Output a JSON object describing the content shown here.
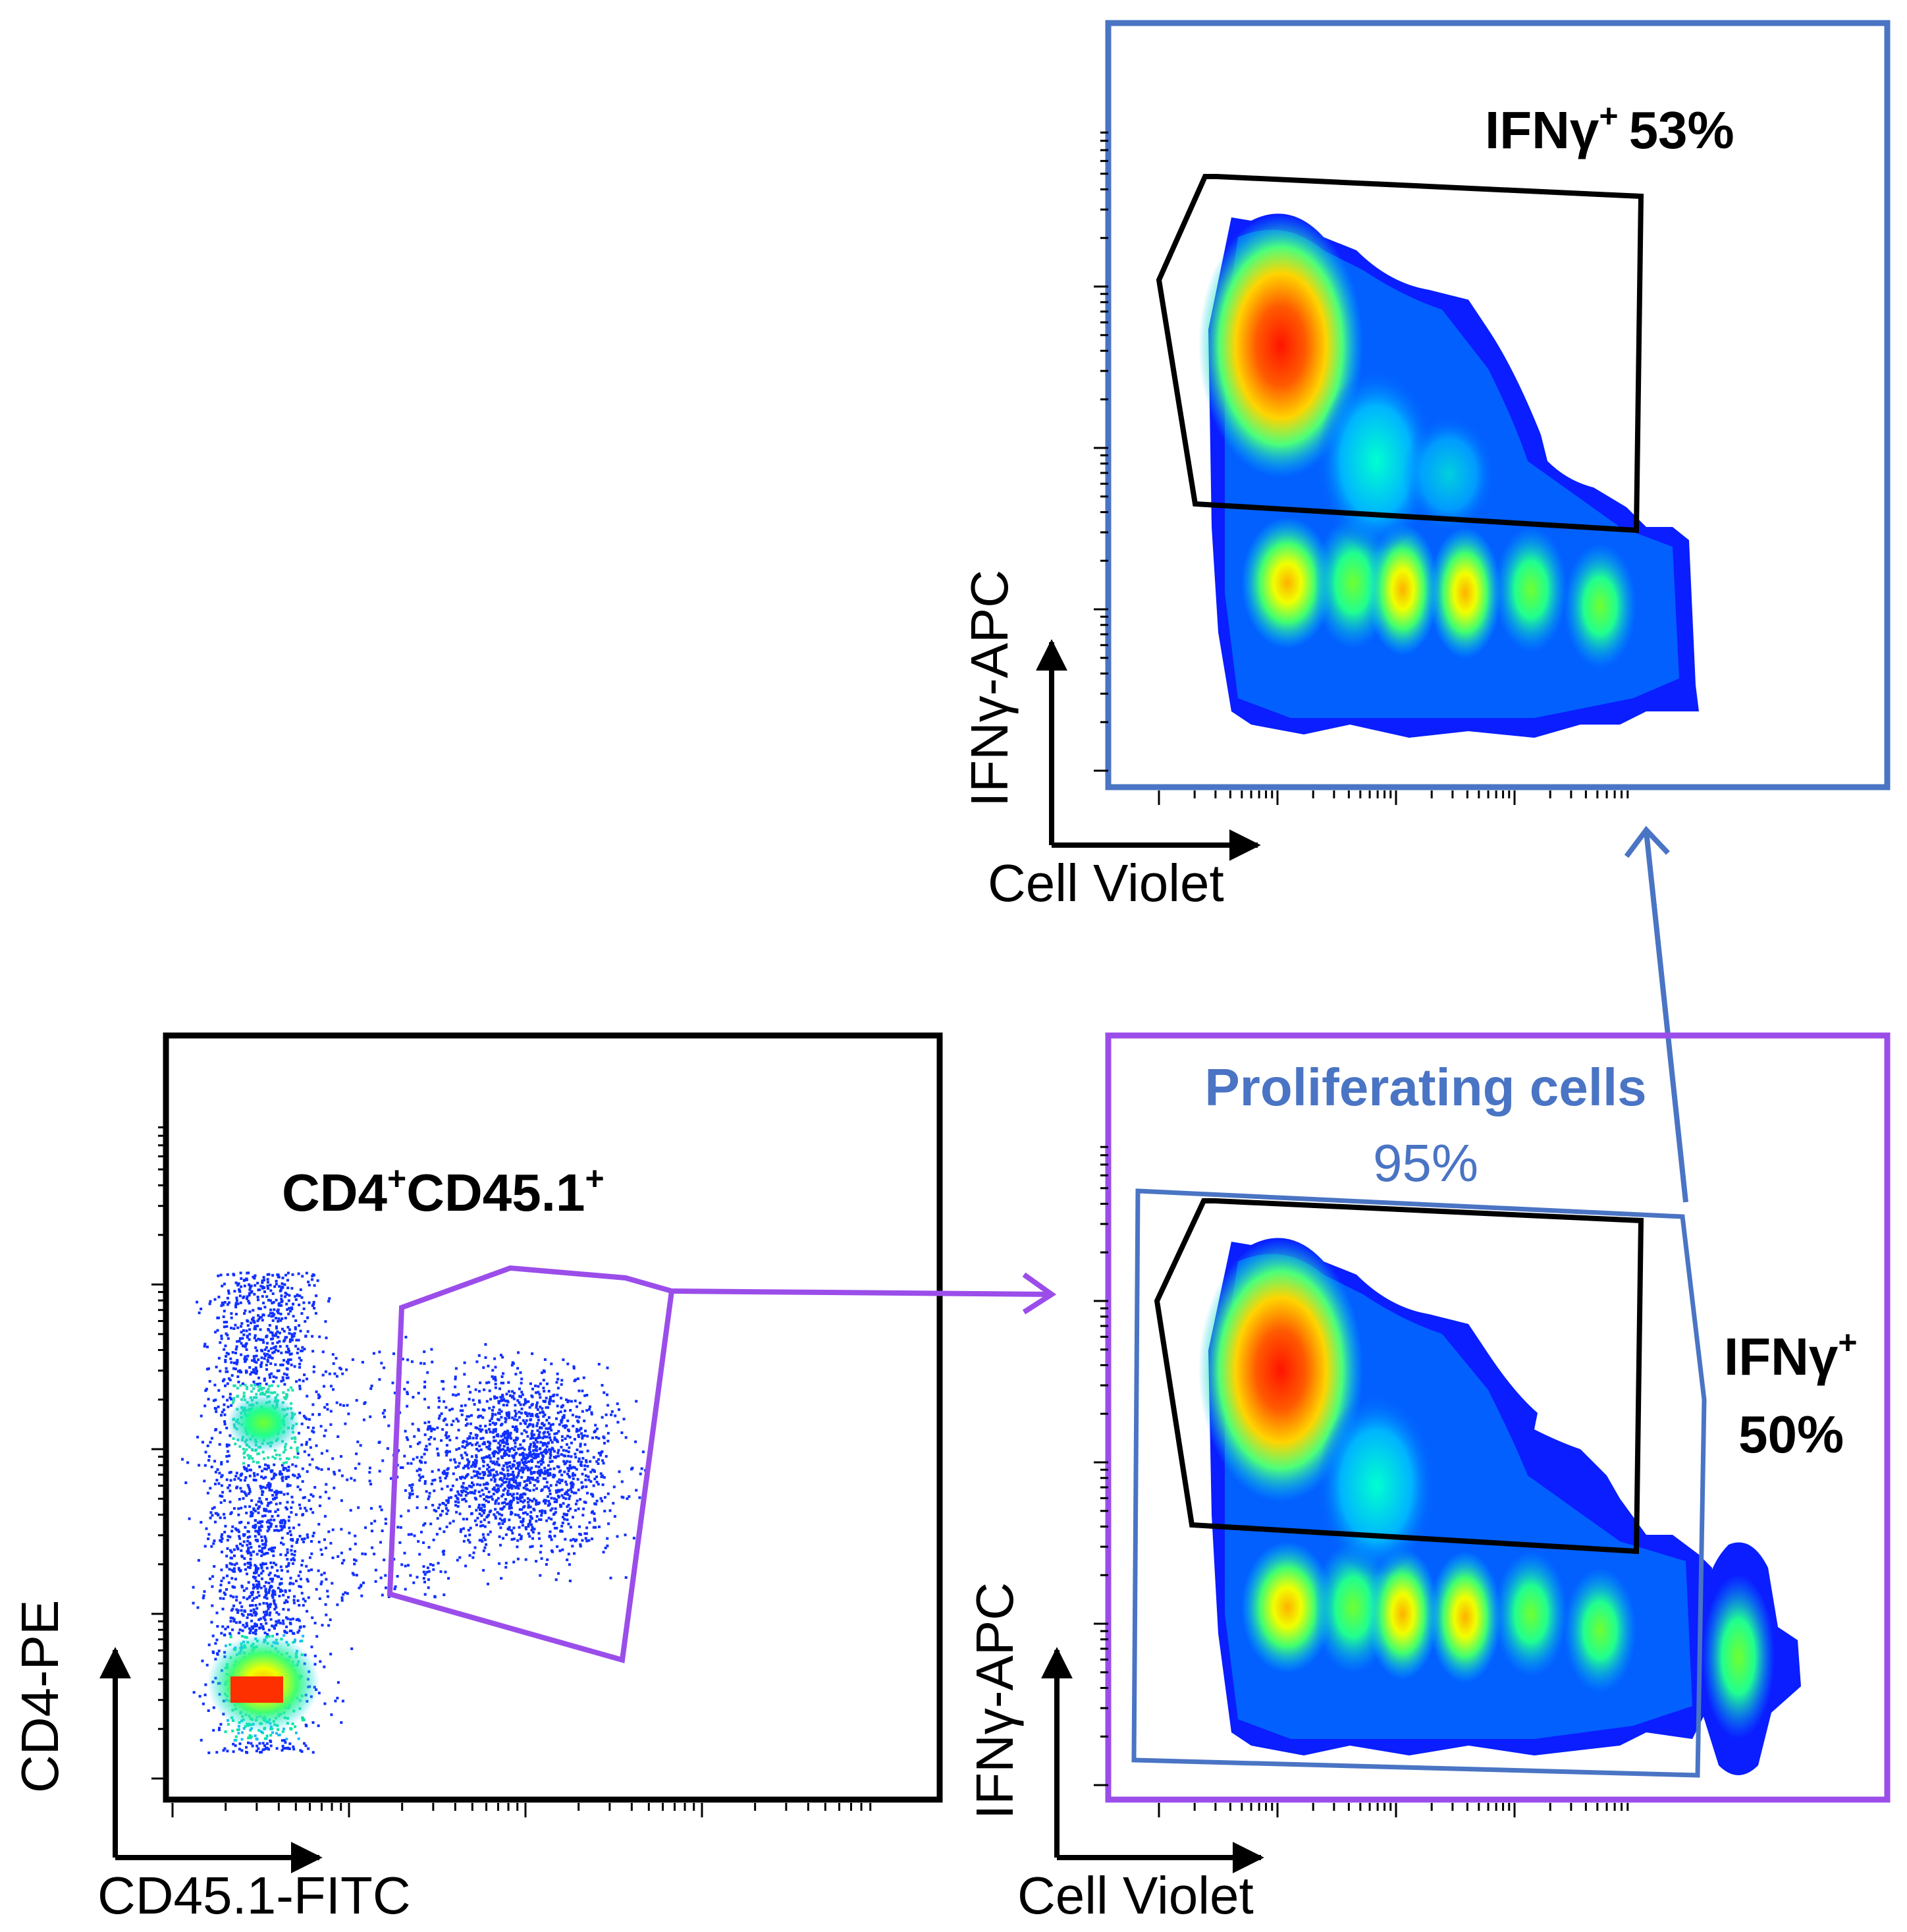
{
  "colors": {
    "black": "#000000",
    "gate_purple": "#9b4dea",
    "gate_blue": "#4a74c4",
    "density_low": "#0a1eff",
    "density_high": "#ff2200"
  },
  "panels": {
    "top_right": {
      "gate_label": "IFNγ",
      "gate_label_sup": "+",
      "gate_percent": "53%",
      "y_axis": "IFNγ-APC",
      "x_axis": "Cell Violet"
    },
    "bottom_left": {
      "gate_label": "CD4",
      "gate_label_sup": "+",
      "gate_label_2": "CD45.1",
      "gate_label_2_sup": "+",
      "y_axis": "CD4-PE",
      "x_axis": "CD45.1-FITC"
    },
    "bottom_right": {
      "prolif_label": "Proliferating cells",
      "prolif_percent": "95%",
      "gate_label": "IFNγ",
      "gate_label_sup": "+",
      "gate_percent": "50%",
      "y_axis": "IFNγ-APC",
      "x_axis": "Cell Violet"
    }
  }
}
